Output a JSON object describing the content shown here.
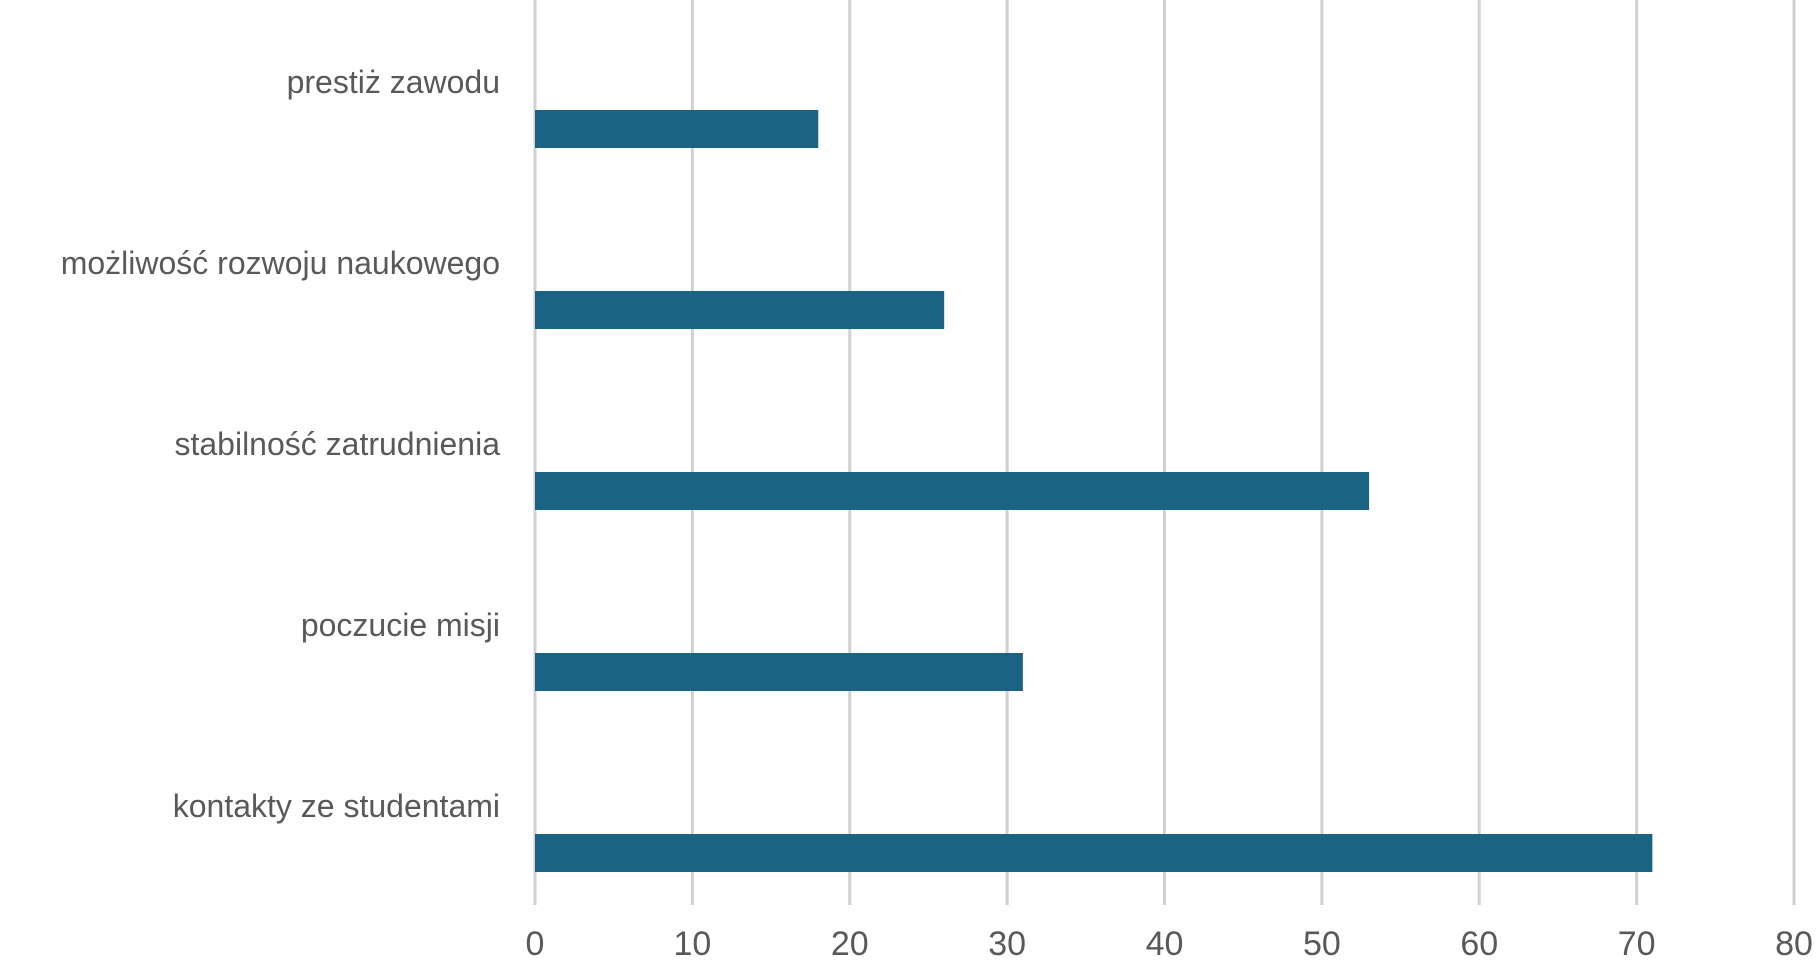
{
  "chart_data": {
    "type": "bar",
    "orientation": "horizontal",
    "title": "",
    "xlabel": "",
    "ylabel": "",
    "categories": [
      "prestiż zawodu",
      "możliwość rozwoju naukowego",
      "stabilność zatrudnienia",
      "poczucie misji",
      "kontakty ze studentami"
    ],
    "values": [
      18,
      26,
      53,
      31,
      71
    ],
    "xlim": [
      0,
      80
    ],
    "xticks": [
      "0",
      "10",
      "20",
      "30",
      "40",
      "50",
      "60",
      "70",
      "80"
    ],
    "grid": true,
    "legend": "none",
    "colors": {
      "bar": "#1b6383",
      "grid": "#d0d0d0",
      "text": "#595959"
    }
  }
}
